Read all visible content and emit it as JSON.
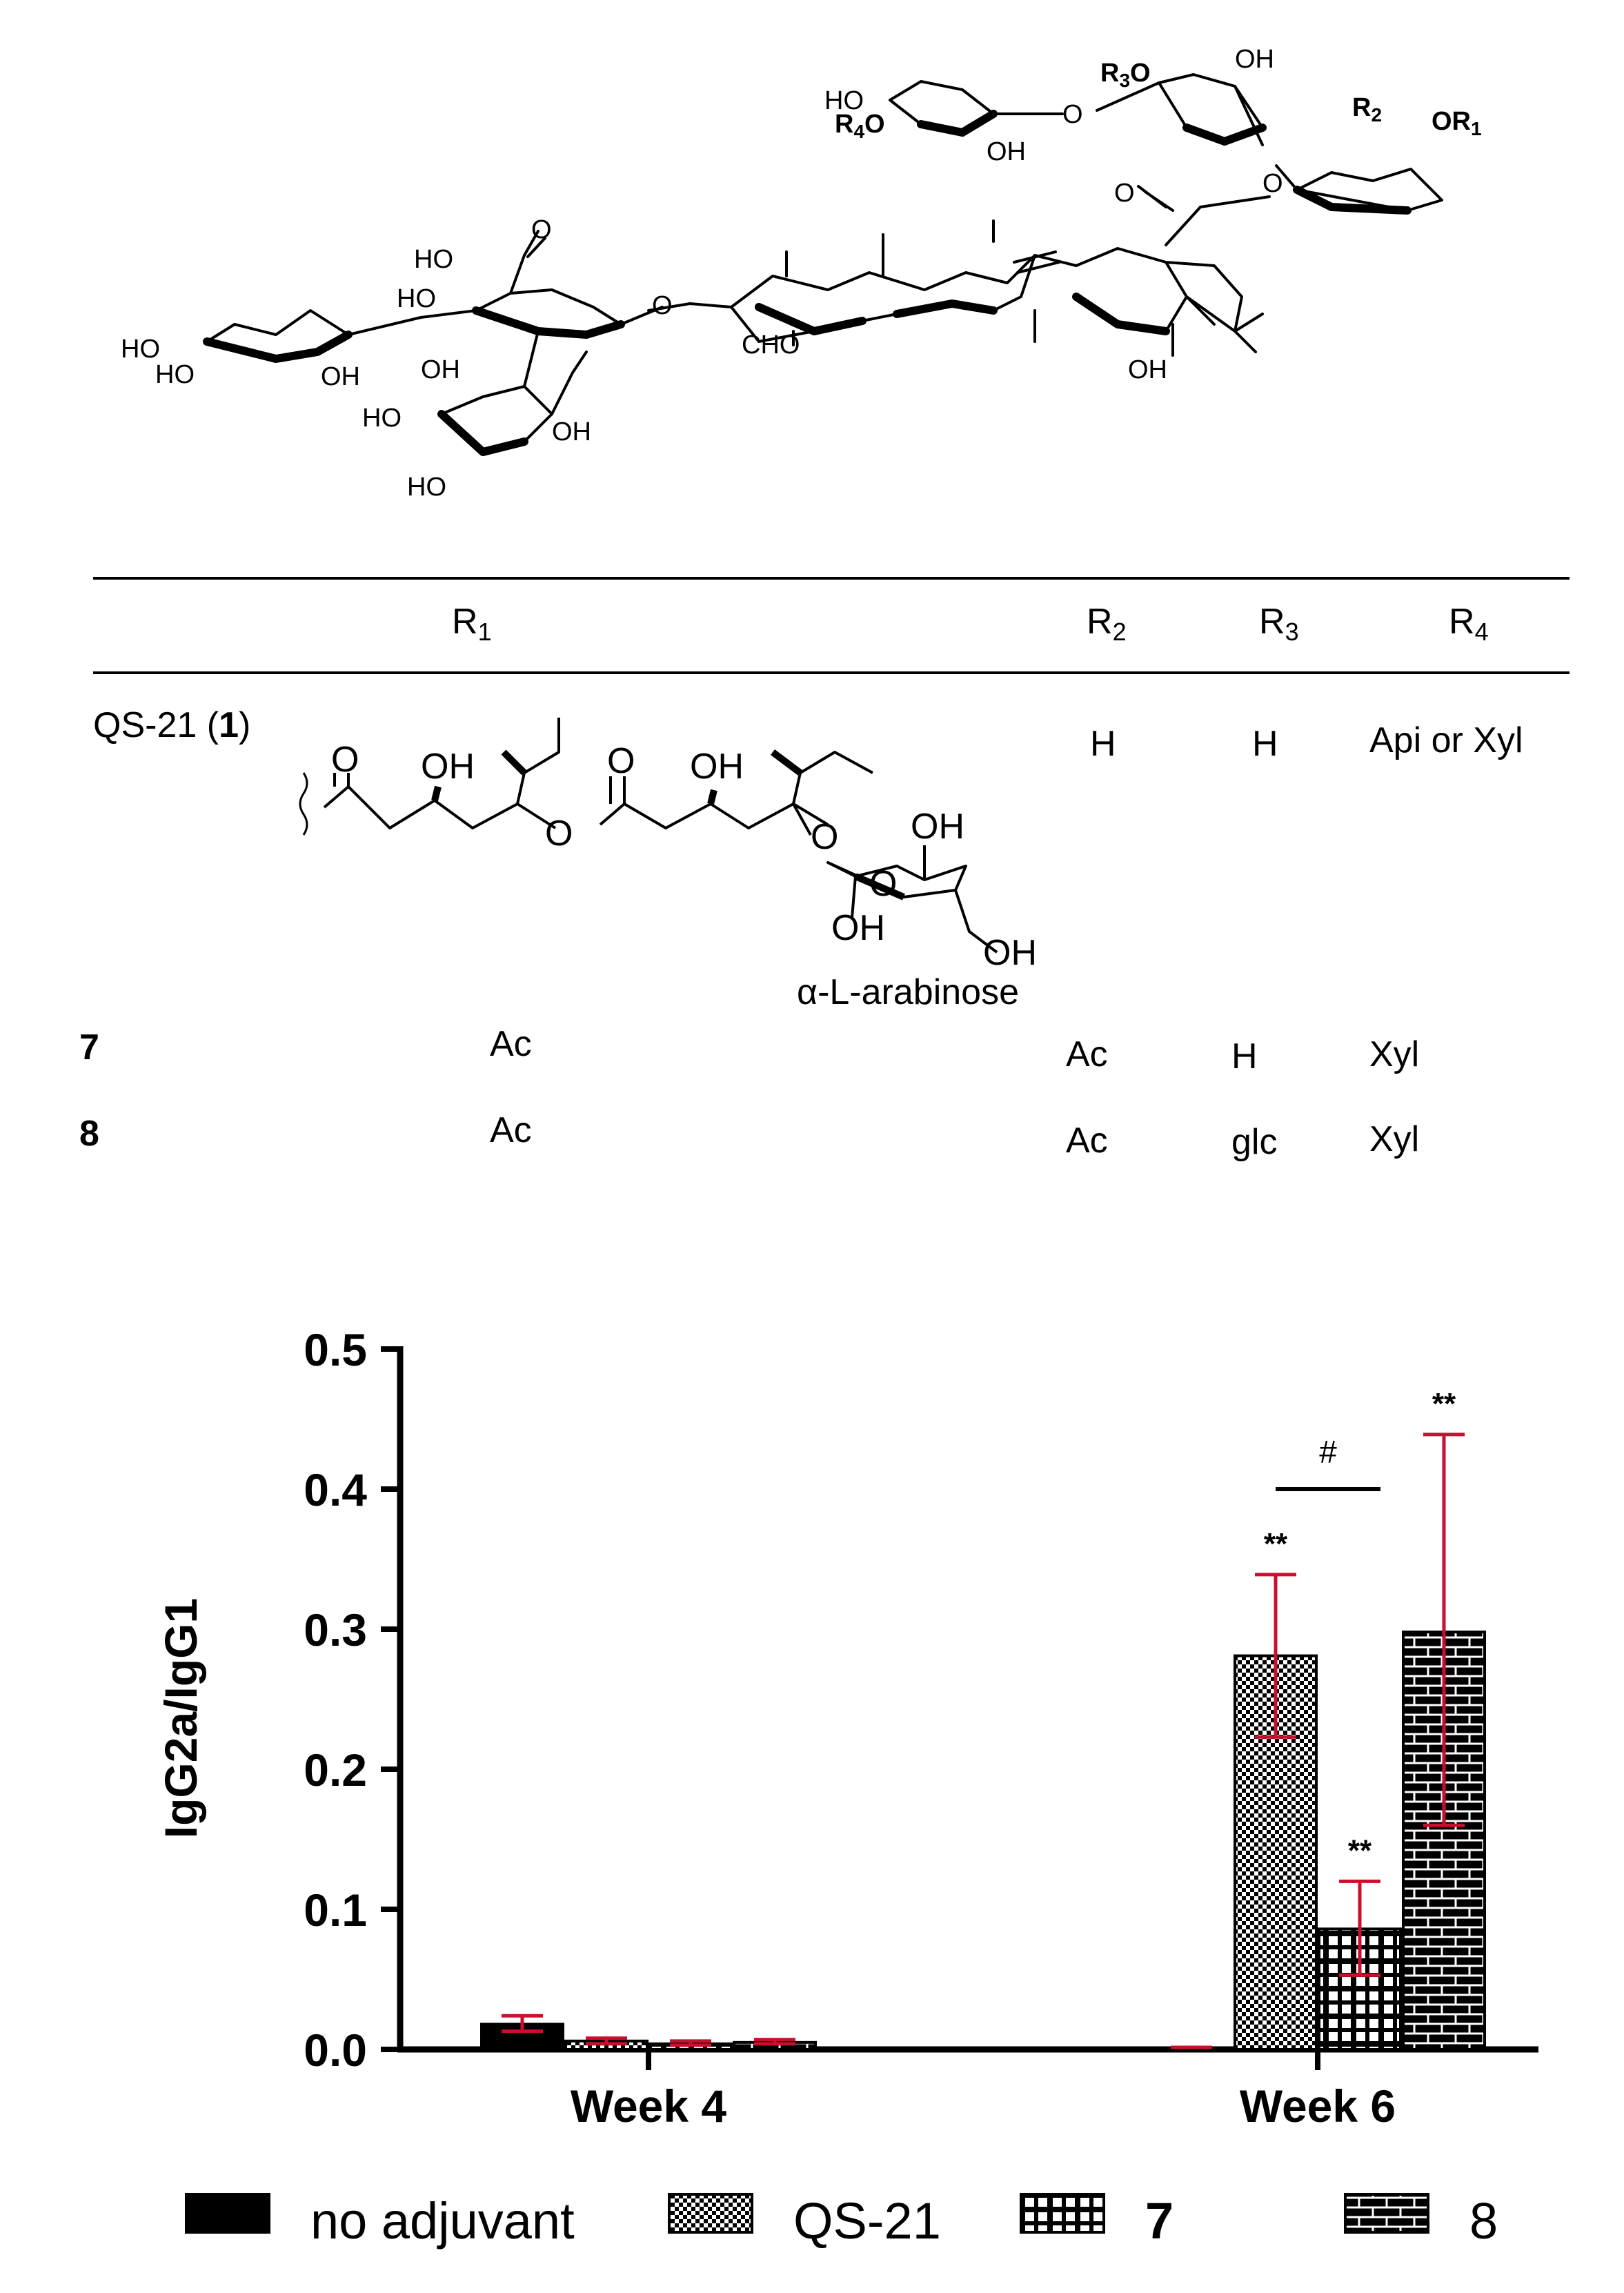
{
  "structure": {
    "labels": {
      "ho_xyl_top": "HO",
      "r4o": "R4O",
      "oh_xyl_top": "OH",
      "o_link": "O",
      "r3o": "R3O",
      "oh_rha": "OH",
      "r2o": "R2",
      "or1": "OR1",
      "o_ester": "O",
      "o_carbonyl": "O",
      "ho_acid": "HO",
      "o_acid": "O",
      "ho_glcA": "HO",
      "o_glyc": "O",
      "ho_xyl1": "HO",
      "ho_xyl2": "HO",
      "oh_xyl": "OH",
      "oh_gal_top": "OH",
      "ho_gal": "HO",
      "oh_gal": "OH",
      "ho_gal_bot": "HO",
      "cho": "CHO",
      "oh_agly": "OH"
    }
  },
  "table": {
    "headers": [
      "R1",
      "R2",
      "R3",
      "R4"
    ],
    "header_subscripts": [
      "1",
      "2",
      "3",
      "4"
    ],
    "rows": [
      {
        "compound": "QS-21 (",
        "compound_bold": "1",
        "compound_end": ")",
        "r1": "",
        "r2": "H",
        "r3": "H",
        "r4": "Api or Xyl"
      },
      {
        "compound": "",
        "compound_bold": "7",
        "compound_end": "",
        "r1": "Ac",
        "r2": "Ac",
        "r3": "H",
        "r4": "Xyl"
      },
      {
        "compound": "",
        "compound_bold": "8",
        "compound_end": "",
        "r1": "Ac",
        "r2": "Ac",
        "r3": "glc",
        "r4": "Xyl"
      }
    ],
    "r1_labels": {
      "o1": "O",
      "oh1": "OH",
      "o2": "O",
      "oh2": "OH",
      "o_link1": "O",
      "o_link2": "O",
      "oh_ara1": "OH",
      "o_ring": "O",
      "oh_ara2": "OH",
      "oh_ara3": "OH",
      "sugar_name": "α-L-arabinose"
    }
  },
  "chart_data": {
    "type": "bar",
    "categories": [
      "Week 4",
      "Week 6"
    ],
    "ylabel": "IgG2a/IgG1",
    "xlabel": "",
    "ylim": [
      0,
      0.5
    ],
    "yticks": [
      "0.0",
      "0.1",
      "0.2",
      "0.3",
      "0.4",
      "0.5"
    ],
    "series": [
      {
        "name": "no adjuvant",
        "pattern": "solid",
        "values": [
          0.018,
          0.0
        ],
        "err_low": [
          0.013,
          0.0
        ],
        "err_high": [
          0.024,
          0.0
        ],
        "sig": [
          "",
          ""
        ]
      },
      {
        "name": "QS-21",
        "pattern": "checker",
        "values": [
          0.006,
          0.281
        ],
        "err_low": [
          0.004,
          0.223
        ],
        "err_high": [
          0.008,
          0.339
        ],
        "sig": [
          "",
          "**"
        ]
      },
      {
        "name": "7",
        "pattern": "grid",
        "values": [
          0.004,
          0.086
        ],
        "err_low": [
          0.003,
          0.053
        ],
        "err_high": [
          0.006,
          0.12
        ],
        "sig": [
          "",
          "**"
        ]
      },
      {
        "name": "8",
        "pattern": "brick",
        "values": [
          0.005,
          0.298
        ],
        "err_low": [
          0.004,
          0.16
        ],
        "err_high": [
          0.007,
          0.439
        ],
        "sig": [
          "",
          "**"
        ]
      }
    ],
    "comparison": {
      "between": [
        "QS-21",
        "7"
      ],
      "category": "Week 6",
      "symbol": "#"
    },
    "legend": {
      "position": "bottom"
    },
    "error_bar_color": "#c8102e",
    "bar_color": "#000000"
  }
}
